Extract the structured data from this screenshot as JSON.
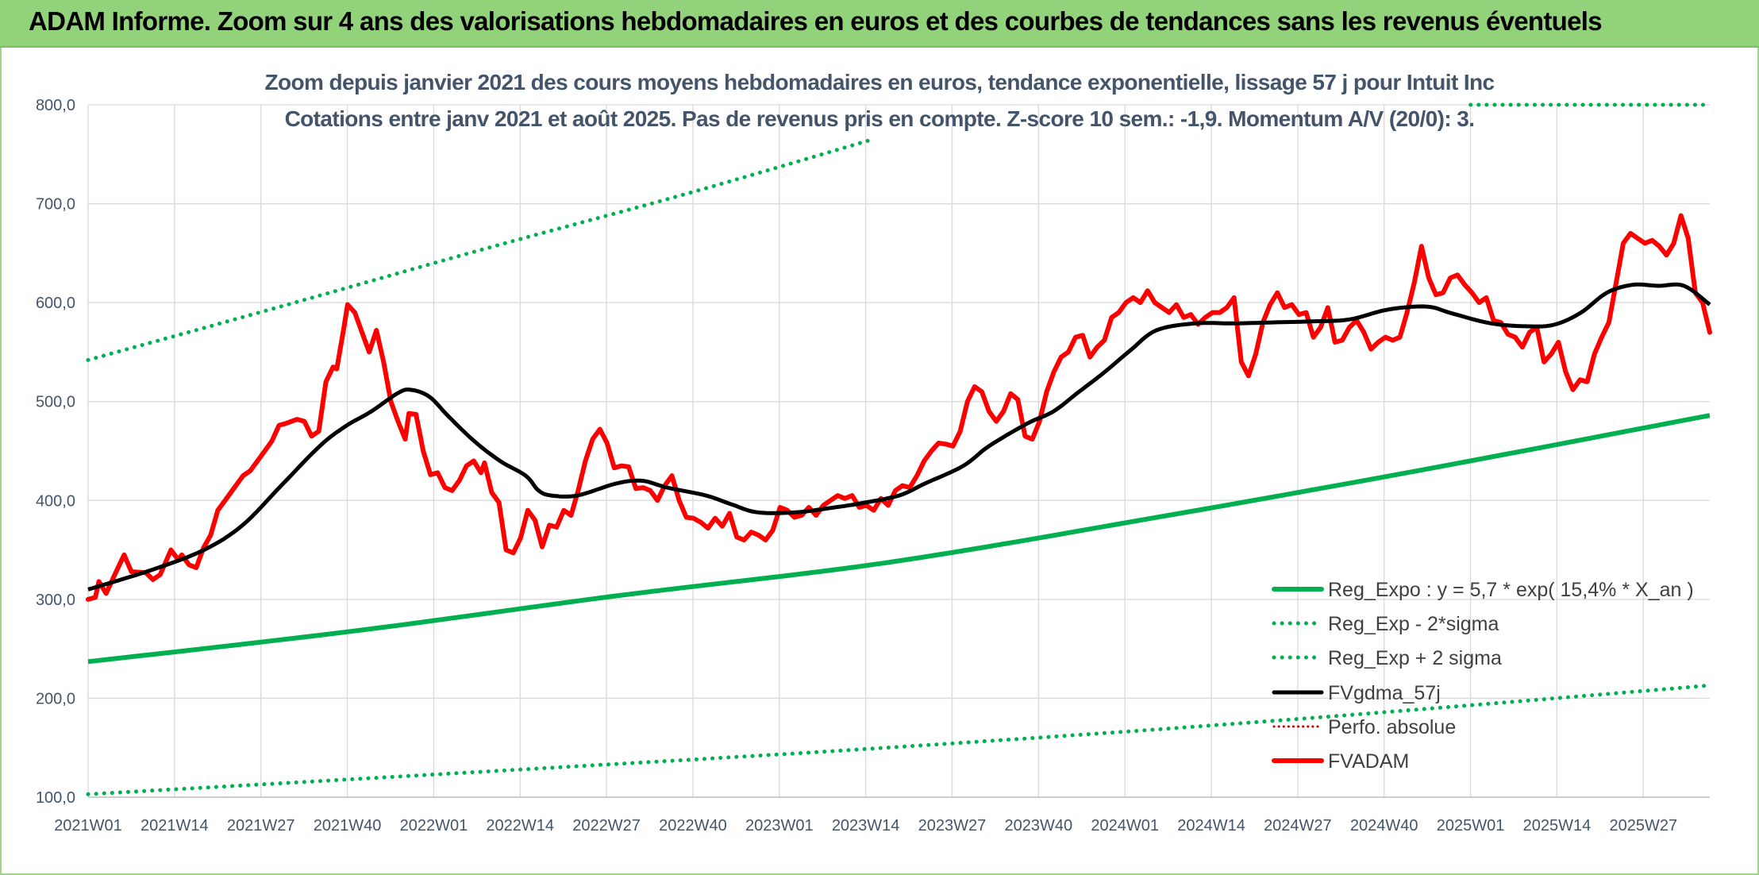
{
  "header": {
    "title": "ADAM Informe. Zoom sur 4 ans des valorisations hebdomadaires en euros et des courbes de tendances sans les revenus éventuels"
  },
  "chart_data": {
    "type": "line",
    "subtitle_line1": "Zoom depuis janvier 2021 des cours moyens hebdomadaires en euros, tendance exponentielle, lissage 57 j pour Intuit Inc",
    "subtitle_line2": "Cotations entre janv 2021 et août 2025. Pas de revenus pris en compte. Z-score 10 sem.: -1,9. Momentum A/V (20/0): 3.",
    "ylim": [
      100,
      800
    ],
    "y_ticks": [
      "100,0",
      "200,0",
      "300,0",
      "400,0",
      "500,0",
      "600,0",
      "700,0",
      "800,0"
    ],
    "x_tick_labels": [
      "2021W01",
      "2021W14",
      "2021W27",
      "2021W40",
      "2022W01",
      "2022W14",
      "2022W27",
      "2022W40",
      "2023W01",
      "2023W14",
      "2023W27",
      "2023W40",
      "2024W01",
      "2024W14",
      "2024W27",
      "2024W40",
      "2025W01",
      "2025W14",
      "2025W27"
    ],
    "x_tick_week_index": [
      0,
      13,
      26,
      39,
      52,
      65,
      78,
      91,
      104,
      117,
      130,
      143,
      156,
      169,
      182,
      195,
      208,
      221,
      234
    ],
    "n_weeks": 245,
    "grid": "vertical and horizontal",
    "legend_position": "bottom-right",
    "colors": {
      "trend": "#00b050",
      "bands": "#00b050",
      "smooth": "#000000",
      "perfo": "#c00000",
      "price": "#ff0000"
    },
    "series": [
      {
        "name": "Reg_Expo : y = 5,7 * exp( 15,4% *  X_an )",
        "style": "solid",
        "knots": [
          [
            0,
            237
          ],
          [
            40,
            268
          ],
          [
            80,
            304
          ],
          [
            120,
            337
          ],
          [
            160,
            382
          ],
          [
            200,
            430
          ],
          [
            244,
            486
          ]
        ]
      },
      {
        "name": "Reg_Exp - 2*sigma",
        "style": "dotted",
        "knots": [
          [
            0,
            103
          ],
          [
            60,
            126
          ],
          [
            120,
            150
          ],
          [
            180,
            178
          ],
          [
            244,
            213
          ]
        ]
      },
      {
        "name": "Reg_Exp + 2 sigma",
        "style": "dotted",
        "knots": [
          [
            0,
            542
          ],
          [
            30,
            598
          ],
          [
            60,
            655
          ],
          [
            90,
            710
          ],
          [
            118,
            765
          ]
        ],
        "knots_b": [
          [
            208,
            800
          ],
          [
            244,
            800
          ]
        ]
      },
      {
        "name": "FVgdma_57j",
        "style": "solid",
        "knots": [
          [
            0,
            310
          ],
          [
            10,
            330
          ],
          [
            18,
            350
          ],
          [
            24,
            375
          ],
          [
            30,
            415
          ],
          [
            36,
            455
          ],
          [
            40,
            475
          ],
          [
            44,
            490
          ],
          [
            48,
            508
          ],
          [
            50,
            512
          ],
          [
            53,
            505
          ],
          [
            56,
            485
          ],
          [
            60,
            460
          ],
          [
            64,
            440
          ],
          [
            68,
            425
          ],
          [
            70,
            410
          ],
          [
            72,
            405
          ],
          [
            76,
            405
          ],
          [
            82,
            417
          ],
          [
            86,
            420
          ],
          [
            90,
            413
          ],
          [
            96,
            405
          ],
          [
            100,
            396
          ],
          [
            104,
            388
          ],
          [
            110,
            388
          ],
          [
            116,
            393
          ],
          [
            120,
            397
          ],
          [
            126,
            405
          ],
          [
            130,
            417
          ],
          [
            136,
            435
          ],
          [
            140,
            455
          ],
          [
            146,
            478
          ],
          [
            150,
            490
          ],
          [
            154,
            510
          ],
          [
            158,
            530
          ],
          [
            162,
            552
          ],
          [
            166,
            572
          ],
          [
            172,
            579
          ],
          [
            178,
            579
          ],
          [
            184,
            580
          ],
          [
            190,
            581
          ],
          [
            196,
            583
          ],
          [
            202,
            593
          ],
          [
            208,
            596
          ],
          [
            212,
            589
          ],
          [
            218,
            579
          ],
          [
            224,
            576
          ],
          [
            228,
            578
          ],
          [
            232,
            590
          ],
          [
            236,
            610
          ],
          [
            240,
            618
          ],
          [
            244,
            617
          ],
          [
            248,
            617
          ],
          [
            252,
            598
          ]
        ]
      },
      {
        "name": "Perfo. absolue",
        "style": "dotted",
        "knots": []
      },
      {
        "name": "FVADAM",
        "style": "solid",
        "knots": [
          [
            0,
            300
          ],
          [
            2,
            302
          ],
          [
            3,
            318
          ],
          [
            5,
            306
          ],
          [
            7,
            322
          ],
          [
            10,
            345
          ],
          [
            12,
            328
          ],
          [
            16,
            327
          ],
          [
            18,
            320
          ],
          [
            20,
            325
          ],
          [
            23,
            350
          ],
          [
            25,
            340
          ],
          [
            26,
            345
          ],
          [
            28,
            335
          ],
          [
            30,
            332
          ],
          [
            32,
            352
          ],
          [
            34,
            365
          ],
          [
            36,
            390
          ],
          [
            38,
            400
          ],
          [
            40,
            410
          ],
          [
            43,
            425
          ],
          [
            45,
            430
          ],
          [
            47,
            440
          ],
          [
            49,
            450
          ],
          [
            51,
            460
          ],
          [
            53,
            476
          ],
          [
            55,
            478
          ],
          [
            58,
            482
          ],
          [
            60,
            480
          ],
          [
            62,
            465
          ],
          [
            64,
            470
          ],
          [
            66,
            520
          ],
          [
            68,
            535
          ],
          [
            69,
            533
          ],
          [
            71,
            575
          ],
          [
            72,
            598
          ],
          [
            74,
            590
          ],
          [
            76,
            570
          ],
          [
            78,
            550
          ],
          [
            80,
            572
          ],
          [
            82,
            540
          ],
          [
            84,
            500
          ],
          [
            86,
            480
          ],
          [
            88,
            462
          ],
          [
            89,
            488
          ],
          [
            91,
            487
          ],
          [
            93,
            450
          ],
          [
            95,
            426
          ],
          [
            97,
            428
          ],
          [
            99,
            413
          ],
          [
            101,
            410
          ],
          [
            103,
            420
          ],
          [
            105,
            435
          ],
          [
            107,
            440
          ],
          [
            109,
            428
          ],
          [
            110,
            438
          ],
          [
            112,
            408
          ],
          [
            114,
            398
          ],
          [
            116,
            350
          ],
          [
            118,
            347
          ],
          [
            120,
            362
          ],
          [
            122,
            390
          ],
          [
            124,
            380
          ],
          [
            126,
            353
          ],
          [
            128,
            375
          ],
          [
            130,
            373
          ],
          [
            132,
            390
          ],
          [
            134,
            385
          ],
          [
            136,
            410
          ],
          [
            138,
            440
          ],
          [
            140,
            462
          ],
          [
            142,
            472
          ],
          [
            144,
            458
          ],
          [
            146,
            433
          ],
          [
            148,
            435
          ],
          [
            150,
            434
          ],
          [
            152,
            412
          ],
          [
            154,
            413
          ],
          [
            156,
            410
          ],
          [
            158,
            400
          ],
          [
            160,
            415
          ],
          [
            162,
            425
          ],
          [
            164,
            400
          ],
          [
            166,
            383
          ],
          [
            168,
            382
          ],
          [
            170,
            378
          ],
          [
            172,
            372
          ],
          [
            174,
            382
          ],
          [
            176,
            374
          ],
          [
            178,
            387
          ],
          [
            180,
            363
          ],
          [
            182,
            360
          ],
          [
            184,
            368
          ],
          [
            186,
            365
          ],
          [
            188,
            360
          ],
          [
            190,
            370
          ],
          [
            192,
            393
          ],
          [
            194,
            390
          ],
          [
            196,
            383
          ],
          [
            198,
            385
          ],
          [
            200,
            393
          ],
          [
            202,
            385
          ],
          [
            204,
            395
          ],
          [
            206,
            400
          ],
          [
            208,
            405
          ],
          [
            210,
            402
          ],
          [
            212,
            405
          ],
          [
            214,
            393
          ],
          [
            216,
            395
          ],
          [
            218,
            390
          ],
          [
            220,
            402
          ],
          [
            222,
            395
          ],
          [
            224,
            410
          ],
          [
            226,
            415
          ],
          [
            228,
            413
          ],
          [
            230,
            425
          ],
          [
            232,
            440
          ],
          [
            234,
            450
          ],
          [
            236,
            458
          ],
          [
            238,
            457
          ],
          [
            240,
            455
          ],
          [
            242,
            470
          ],
          [
            244,
            500
          ],
          [
            246,
            515
          ],
          [
            248,
            510
          ],
          [
            250,
            490
          ],
          [
            252,
            480
          ],
          [
            254,
            490
          ],
          [
            256,
            508
          ],
          [
            258,
            502
          ],
          [
            260,
            465
          ],
          [
            262,
            462
          ],
          [
            264,
            480
          ],
          [
            266,
            510
          ],
          [
            268,
            530
          ],
          [
            270,
            545
          ],
          [
            272,
            550
          ],
          [
            274,
            565
          ],
          [
            276,
            567
          ],
          [
            278,
            545
          ],
          [
            280,
            555
          ],
          [
            282,
            562
          ],
          [
            284,
            585
          ],
          [
            286,
            590
          ],
          [
            288,
            600
          ],
          [
            290,
            605
          ],
          [
            292,
            600
          ],
          [
            294,
            612
          ],
          [
            296,
            600
          ],
          [
            298,
            595
          ],
          [
            300,
            590
          ],
          [
            302,
            598
          ],
          [
            304,
            585
          ],
          [
            306,
            588
          ],
          [
            308,
            578
          ],
          [
            310,
            585
          ],
          [
            312,
            590
          ],
          [
            314,
            590
          ],
          [
            316,
            595
          ],
          [
            318,
            605
          ],
          [
            320,
            540
          ],
          [
            322,
            526
          ],
          [
            324,
            548
          ],
          [
            326,
            580
          ],
          [
            328,
            598
          ],
          [
            330,
            610
          ],
          [
            332,
            595
          ],
          [
            334,
            598
          ],
          [
            336,
            588
          ],
          [
            338,
            590
          ],
          [
            340,
            565
          ],
          [
            342,
            575
          ],
          [
            344,
            595
          ],
          [
            346,
            560
          ],
          [
            348,
            562
          ],
          [
            350,
            575
          ],
          [
            352,
            582
          ],
          [
            354,
            570
          ],
          [
            356,
            553
          ],
          [
            358,
            560
          ],
          [
            360,
            565
          ],
          [
            362,
            562
          ],
          [
            364,
            565
          ],
          [
            366,
            590
          ],
          [
            368,
            620
          ],
          [
            370,
            657
          ],
          [
            372,
            625
          ],
          [
            374,
            608
          ],
          [
            376,
            610
          ],
          [
            378,
            625
          ],
          [
            380,
            628
          ],
          [
            382,
            618
          ],
          [
            384,
            610
          ],
          [
            386,
            600
          ],
          [
            388,
            605
          ],
          [
            390,
            582
          ],
          [
            392,
            580
          ],
          [
            394,
            568
          ],
          [
            396,
            565
          ],
          [
            398,
            555
          ],
          [
            400,
            570
          ],
          [
            402,
            575
          ],
          [
            404,
            540
          ],
          [
            406,
            548
          ],
          [
            408,
            560
          ],
          [
            410,
            530
          ],
          [
            412,
            512
          ],
          [
            414,
            522
          ],
          [
            416,
            520
          ],
          [
            418,
            548
          ],
          [
            420,
            565
          ],
          [
            422,
            580
          ],
          [
            424,
            620
          ],
          [
            426,
            660
          ],
          [
            428,
            670
          ],
          [
            430,
            665
          ],
          [
            432,
            660
          ],
          [
            434,
            663
          ],
          [
            436,
            657
          ],
          [
            438,
            648
          ],
          [
            440,
            660
          ],
          [
            442,
            688
          ],
          [
            444,
            665
          ],
          [
            446,
            610
          ],
          [
            448,
            600
          ],
          [
            450,
            570
          ]
        ]
      }
    ]
  }
}
